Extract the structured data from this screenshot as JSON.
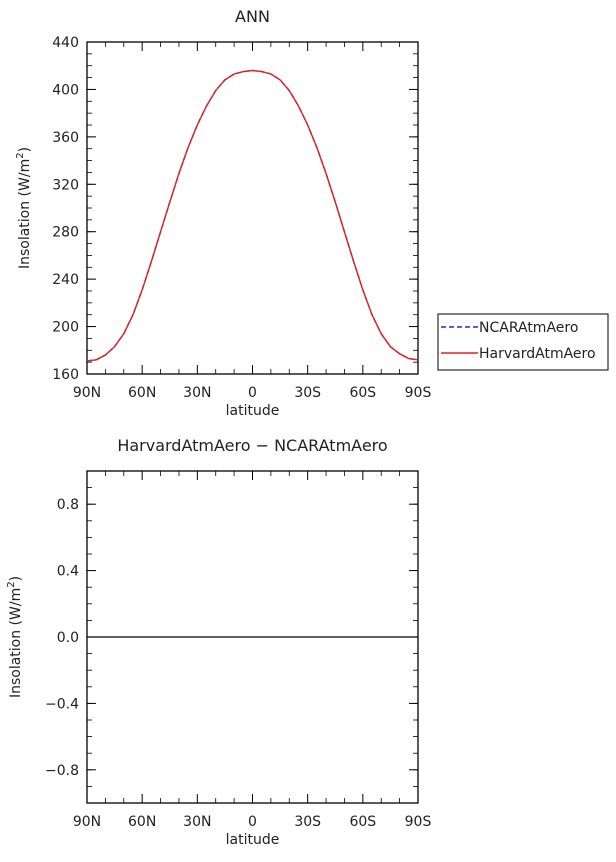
{
  "chart_data": [
    {
      "type": "line",
      "title": "ANN",
      "xlabel": "latitude",
      "ylabel": "Insolation (W/m",
      "ylabel_sup": "2",
      "ylabel_end": ")",
      "x_ticks": [
        {
          "value": -90,
          "label": "90N"
        },
        {
          "value": -60,
          "label": "60N"
        },
        {
          "value": -30,
          "label": "30N"
        },
        {
          "value": 0,
          "label": "0"
        },
        {
          "value": 30,
          "label": "30S"
        },
        {
          "value": 60,
          "label": "60S"
        },
        {
          "value": 90,
          "label": "90S"
        }
      ],
      "y_ticks": [
        {
          "value": 160,
          "label": "160"
        },
        {
          "value": 200,
          "label": "200"
        },
        {
          "value": 240,
          "label": "240"
        },
        {
          "value": 280,
          "label": "280"
        },
        {
          "value": 320,
          "label": "320"
        },
        {
          "value": 360,
          "label": "360"
        },
        {
          "value": 400,
          "label": "400"
        },
        {
          "value": 440,
          "label": "440"
        }
      ],
      "xlim": [
        -90,
        90
      ],
      "ylim": [
        160,
        440
      ],
      "grid": false,
      "legend_position": "right",
      "series": [
        {
          "name": "NCARAtmAero",
          "color": "#1f2fd0",
          "dash": "dashed",
          "x": [
            -90,
            -85,
            -80,
            -75,
            -70,
            -65,
            -60,
            -55,
            -50,
            -45,
            -40,
            -35,
            -30,
            -25,
            -20,
            -15,
            -10,
            -5,
            0,
            5,
            10,
            15,
            20,
            25,
            30,
            35,
            40,
            45,
            50,
            55,
            60,
            65,
            70,
            75,
            80,
            85,
            90
          ],
          "y": [
            171,
            172,
            176,
            183,
            194,
            210,
            231,
            255,
            280,
            305,
            329,
            351,
            370,
            386,
            399,
            408,
            413,
            415,
            416,
            415,
            413,
            408,
            399,
            386,
            370,
            351,
            329,
            305,
            280,
            255,
            231,
            210,
            194,
            183,
            177,
            173,
            172
          ]
        },
        {
          "name": "HarvardAtmAero",
          "color": "#e0201b",
          "dash": "solid",
          "x": [
            -90,
            -85,
            -80,
            -75,
            -70,
            -65,
            -60,
            -55,
            -50,
            -45,
            -40,
            -35,
            -30,
            -25,
            -20,
            -15,
            -10,
            -5,
            0,
            5,
            10,
            15,
            20,
            25,
            30,
            35,
            40,
            45,
            50,
            55,
            60,
            65,
            70,
            75,
            80,
            85,
            90
          ],
          "y": [
            171,
            172,
            176,
            183,
            194,
            210,
            231,
            255,
            280,
            305,
            329,
            351,
            370,
            386,
            399,
            408,
            413,
            415,
            416,
            415,
            413,
            408,
            399,
            386,
            370,
            351,
            329,
            305,
            280,
            255,
            231,
            210,
            194,
            183,
            177,
            173,
            172
          ]
        }
      ]
    },
    {
      "type": "line",
      "title": "HarvardAtmAero − NCARAtmAero",
      "xlabel": "latitude",
      "ylabel": "Insolation (W/m",
      "ylabel_sup": "2",
      "ylabel_end": ")",
      "x_ticks": [
        {
          "value": -90,
          "label": "90N"
        },
        {
          "value": -60,
          "label": "60N"
        },
        {
          "value": -30,
          "label": "30N"
        },
        {
          "value": 0,
          "label": "0"
        },
        {
          "value": 30,
          "label": "30S"
        },
        {
          "value": 60,
          "label": "60S"
        },
        {
          "value": 90,
          "label": "90S"
        }
      ],
      "y_ticks": [
        {
          "value": -0.8,
          "label": "−0.8"
        },
        {
          "value": -0.4,
          "label": "−0.4"
        },
        {
          "value": 0.0,
          "label": "0.0"
        },
        {
          "value": 0.4,
          "label": "0.4"
        },
        {
          "value": 0.8,
          "label": "0.8"
        }
      ],
      "xlim": [
        -90,
        90
      ],
      "ylim": [
        -1,
        1
      ],
      "grid": false,
      "series": [
        {
          "color": "#000000",
          "dash": "solid",
          "x": [
            -90,
            -60,
            -30,
            0,
            30,
            60,
            90
          ],
          "y": [
            0,
            0,
            0,
            0,
            0,
            0,
            0
          ]
        }
      ]
    }
  ]
}
